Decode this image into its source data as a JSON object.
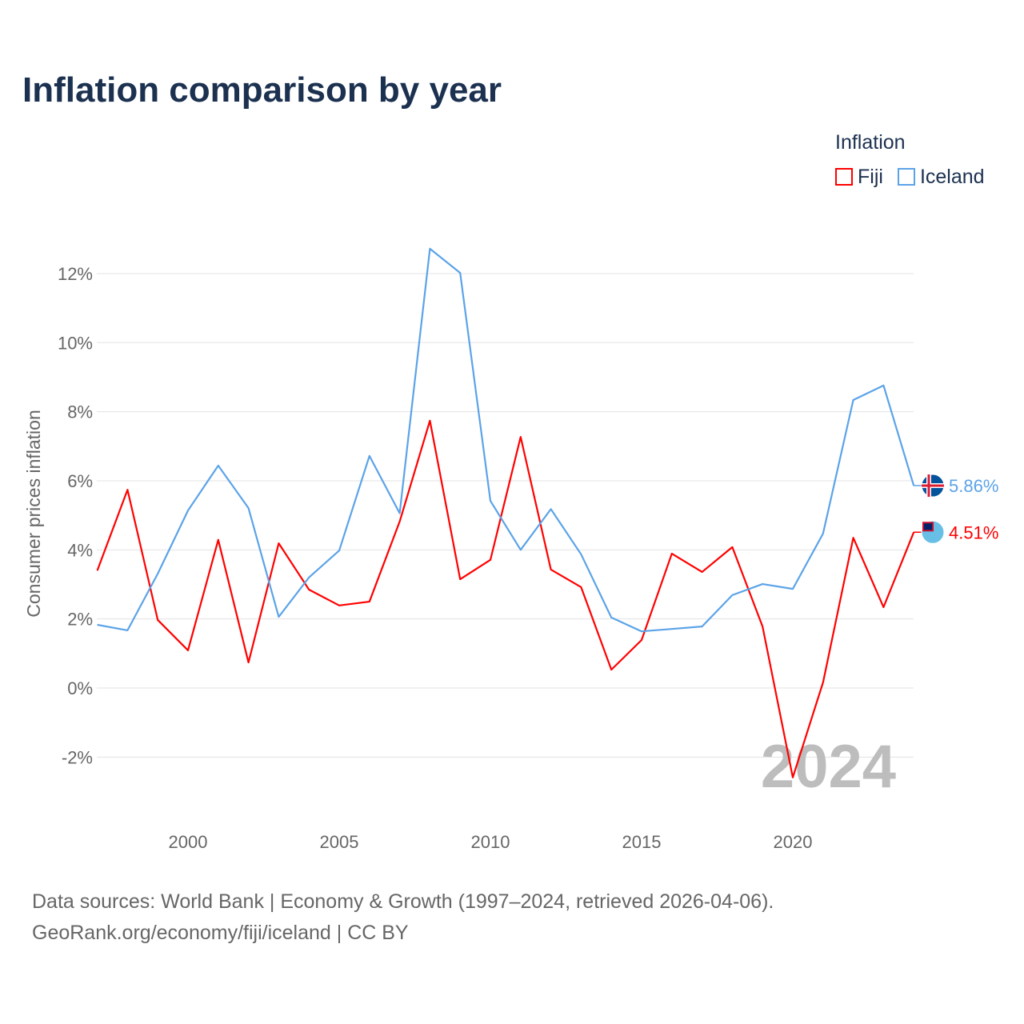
{
  "title": "Inflation comparison by year",
  "legend": {
    "title": "Inflation",
    "items": [
      {
        "name": "Fiji",
        "color": "#ff0000"
      },
      {
        "name": "Iceland",
        "color": "#5ba3e8"
      }
    ]
  },
  "source": {
    "line1": "Data sources: World Bank | Economy & Growth (1997–2024, retrieved 2026-04-06).",
    "line2": "GeoRank.org/economy/fiji/iceland | CC BY"
  },
  "chart_data": {
    "type": "line",
    "title": "Inflation comparison by year",
    "xlabel": "",
    "ylabel": "Consumer prices inflation",
    "x": [
      1997,
      1998,
      1999,
      2000,
      2001,
      2002,
      2003,
      2004,
      2005,
      2006,
      2007,
      2008,
      2009,
      2010,
      2011,
      2012,
      2013,
      2014,
      2015,
      2016,
      2017,
      2018,
      2019,
      2020,
      2021,
      2022,
      2023,
      2024
    ],
    "xlim": [
      1997,
      2024
    ],
    "ylim": [
      -3.3,
      13.5
    ],
    "xticks": [
      2000,
      2005,
      2010,
      2015,
      2020
    ],
    "yticks": [
      -2,
      0,
      2,
      4,
      6,
      8,
      10,
      12
    ],
    "ytick_labels": [
      "-2%",
      "0%",
      "2%",
      "4%",
      "6%",
      "8%",
      "10%",
      "12%"
    ],
    "grid": true,
    "legend_position": "top-right",
    "year_watermark": "2024",
    "series": [
      {
        "name": "Fiji",
        "color": "#ff0000",
        "end_label": "4.51%",
        "values": [
          3.4,
          5.74,
          1.97,
          1.09,
          4.29,
          0.74,
          4.19,
          2.85,
          2.39,
          2.5,
          4.82,
          7.74,
          3.15,
          3.71,
          7.27,
          3.43,
          2.92,
          0.53,
          1.39,
          3.89,
          3.36,
          4.08,
          1.78,
          -2.59,
          0.16,
          4.35,
          2.34,
          4.51
        ]
      },
      {
        "name": "Iceland",
        "color": "#5ba3e8",
        "end_label": "5.86%",
        "values": [
          1.83,
          1.67,
          3.31,
          5.14,
          6.44,
          5.21,
          2.06,
          3.2,
          3.98,
          6.72,
          5.06,
          12.72,
          12.02,
          5.42,
          4.0,
          5.18,
          3.87,
          2.04,
          1.64,
          1.71,
          1.78,
          2.69,
          3.01,
          2.87,
          4.47,
          8.34,
          8.76,
          5.86
        ]
      }
    ]
  }
}
